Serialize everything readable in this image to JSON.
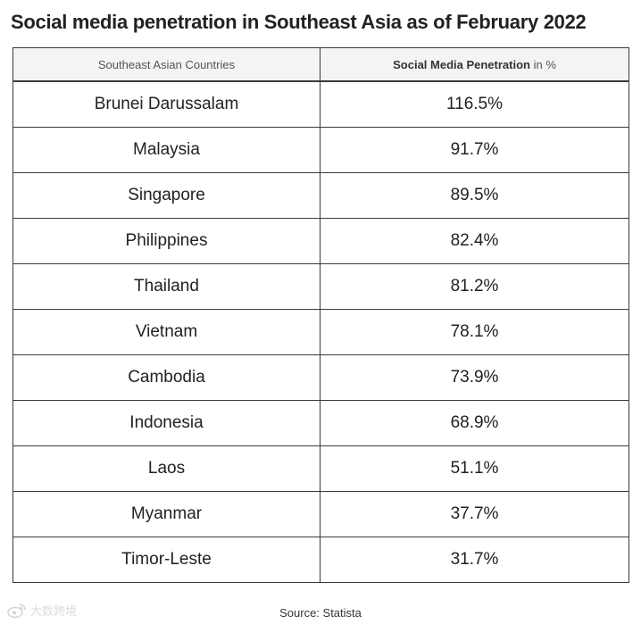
{
  "chart_data": {
    "type": "table",
    "title": "Social media penetration in Southeast Asia as of February 2022",
    "columns": [
      "Southeast Asian Countries",
      "Social Media Penetration in %"
    ],
    "header_col2_bold": "Social Media Penetration",
    "header_col2_rest": " in %",
    "rows": [
      {
        "country": "Brunei Darussalam",
        "value": "116.5%"
      },
      {
        "country": "Malaysia",
        "value": "91.7%"
      },
      {
        "country": "Singapore",
        "value": "89.5%"
      },
      {
        "country": "Philippines",
        "value": "82.4%"
      },
      {
        "country": "Thailand",
        "value": "81.2%"
      },
      {
        "country": "Vietnam",
        "value": "78.1%"
      },
      {
        "country": "Cambodia",
        "value": "73.9%"
      },
      {
        "country": "Indonesia",
        "value": "68.9%"
      },
      {
        "country": "Laos",
        "value": "51.1%"
      },
      {
        "country": "Myanmar",
        "value": "37.7%"
      },
      {
        "country": "Timor-Leste",
        "value": "31.7%"
      }
    ],
    "source": "Source: Statista"
  },
  "watermark": {
    "text": "大数跨境",
    "icon": "weibo-logo-icon"
  }
}
